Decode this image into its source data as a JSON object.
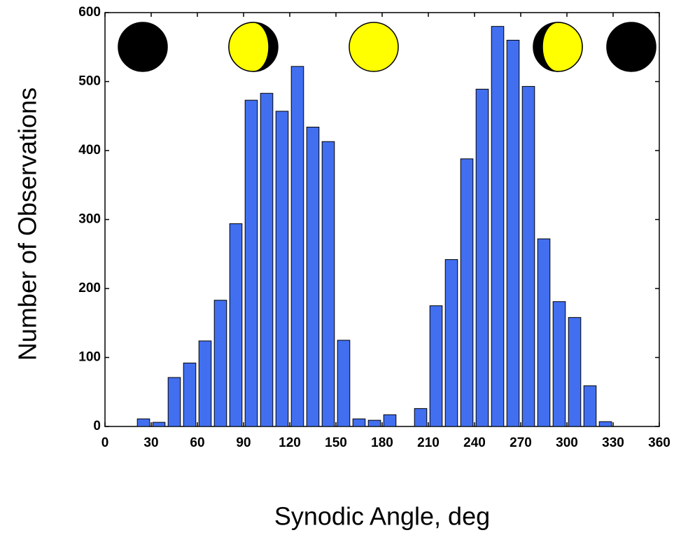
{
  "chart_data": {
    "type": "histogram",
    "x_label": "Synodic Angle, deg",
    "y_label": "Number of Observations",
    "bins": [
      20,
      30,
      40,
      50,
      60,
      70,
      80,
      90,
      100,
      110,
      120,
      130,
      140,
      150,
      160,
      170,
      180,
      190,
      200,
      210,
      220,
      230,
      240,
      250,
      260,
      270,
      280,
      290,
      300,
      310,
      320,
      330
    ],
    "values": [
      11,
      6,
      71,
      92,
      124,
      183,
      294,
      473,
      483,
      457,
      522,
      434,
      413,
      125,
      11,
      9,
      17,
      0,
      26,
      175,
      242,
      388,
      489,
      580,
      560,
      493,
      272,
      181,
      158,
      59,
      7
    ],
    "color": "#416ff0",
    "xlim": [
      0,
      360
    ],
    "xticks": [
      0,
      30,
      60,
      90,
      120,
      150,
      180,
      210,
      240,
      270,
      300,
      330,
      360
    ],
    "ylim": [
      0,
      600
    ],
    "yticks": [
      0,
      100,
      200,
      300,
      400,
      500,
      600
    ]
  }
}
